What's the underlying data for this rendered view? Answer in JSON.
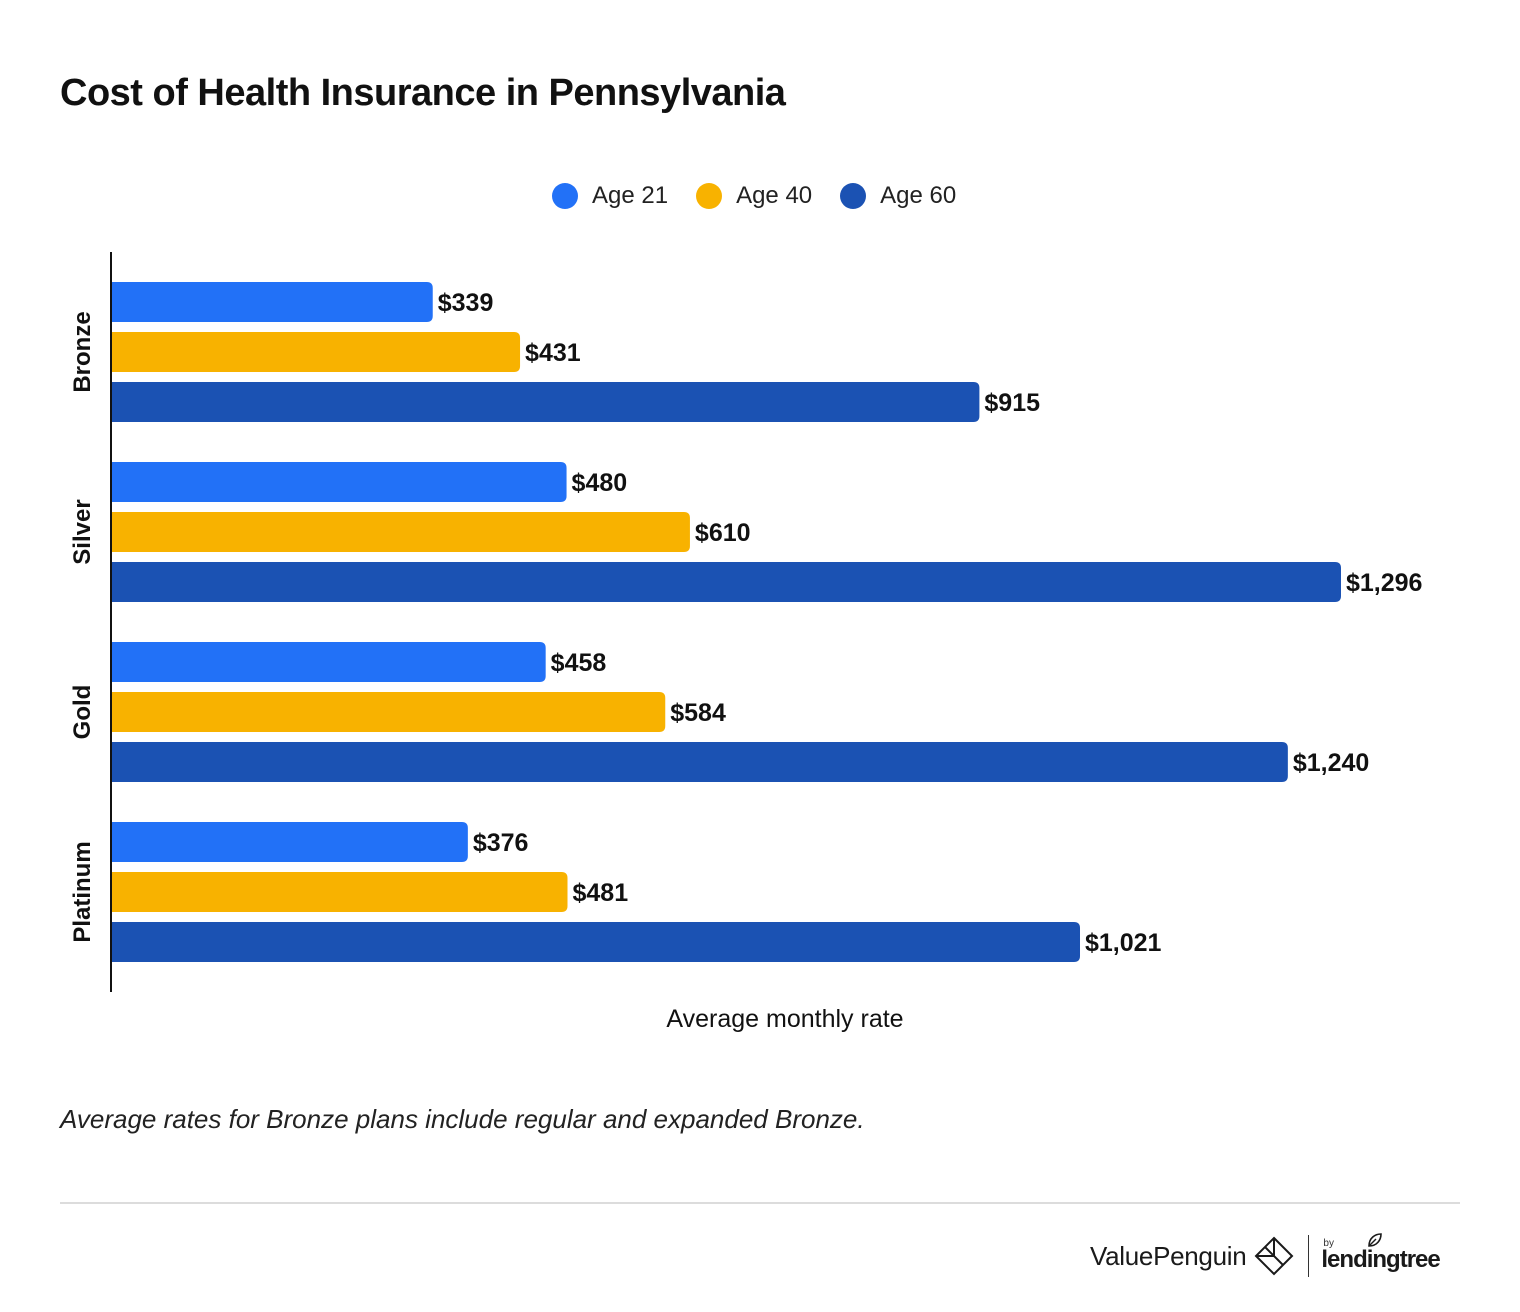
{
  "title": "Cost of Health Insurance in Pennsylvania",
  "colors": {
    "age21": "#2271f7",
    "age40": "#f8b200",
    "age60": "#1b52b3"
  },
  "chart_data": {
    "type": "bar",
    "orientation": "horizontal",
    "title": "Cost of Health Insurance in Pennsylvania",
    "categories": [
      "Bronze",
      "Silver",
      "Gold",
      "Platinum"
    ],
    "series": [
      {
        "name": "Age 21",
        "values": [
          339,
          480,
          458,
          376
        ],
        "labels": [
          "$339",
          "$480",
          "$458",
          "$376"
        ]
      },
      {
        "name": "Age 40",
        "values": [
          431,
          610,
          584,
          481
        ],
        "labels": [
          "$431",
          "$610",
          "$584",
          "$481"
        ]
      },
      {
        "name": "Age 60",
        "values": [
          915,
          1296,
          1240,
          1021
        ],
        "labels": [
          "$915",
          "$1,296",
          "$1,240",
          "$1,021"
        ]
      }
    ],
    "xlabel": "Average monthly rate",
    "ylabel": "",
    "xlim": [
      0,
      1296
    ],
    "legend": "top-center",
    "grid": false
  },
  "footnote": "Average rates for Bronze plans include regular and expanded Bronze.",
  "brand": {
    "name": "ValuePenguin",
    "by": "by",
    "partner": "lendingtree"
  }
}
